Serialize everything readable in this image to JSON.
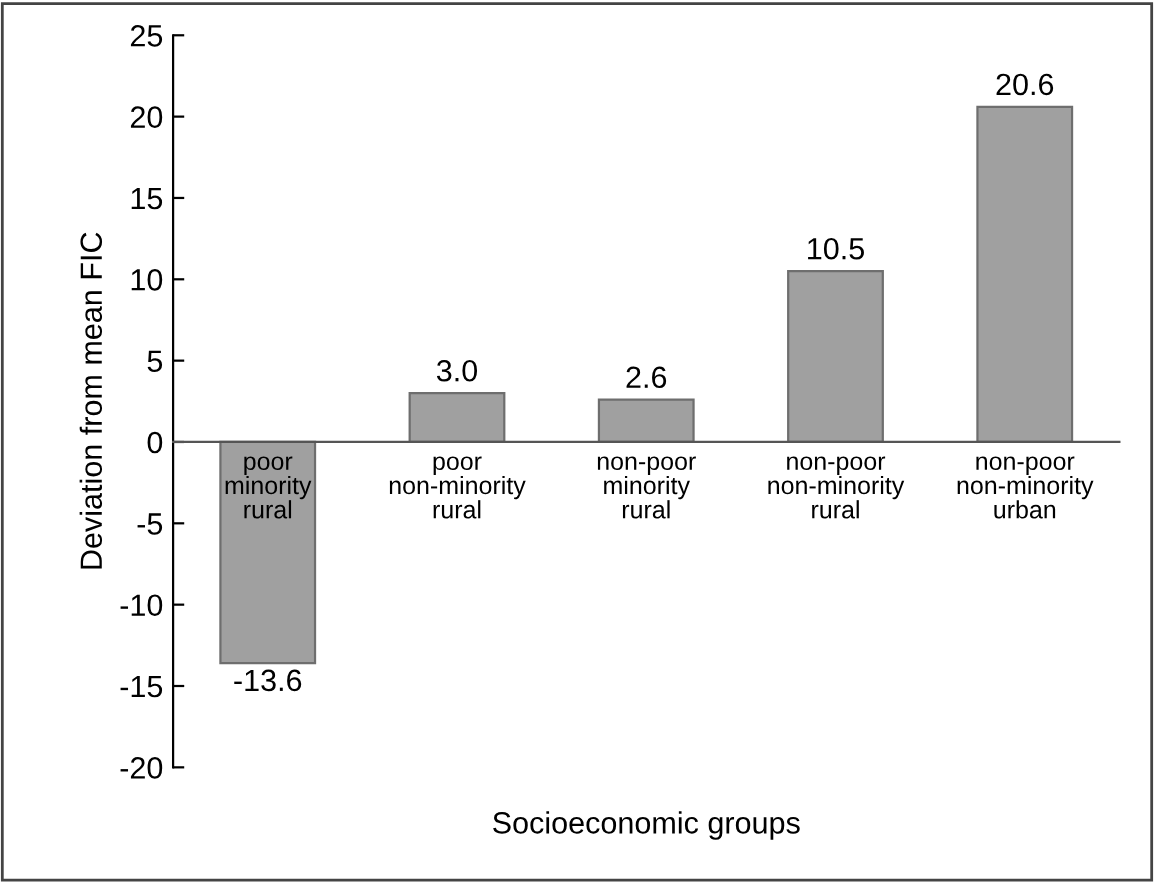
{
  "chart_data": {
    "type": "bar",
    "xlabel": "Socioeconomic groups",
    "ylabel": "Deviation from mean FIC",
    "categories": [
      "poor\nminority\nrural",
      "poor\nnon-minority\nrural",
      "non-poor\nminority\nrural",
      "non-poor\nnon-minority\nrural",
      "non-poor\nnon-minority\nurban"
    ],
    "values": [
      -13.6,
      3.0,
      2.6,
      10.5,
      20.6
    ],
    "value_labels": [
      "-13.6",
      "3.0",
      "2.6",
      "10.5",
      "20.6"
    ],
    "color": "#a0a0a0",
    "ylim": [
      -20,
      25
    ],
    "yticks": [
      {
        "value": -20,
        "label": "-20"
      },
      {
        "value": -15,
        "label": "-15"
      },
      {
        "value": -10,
        "label": "-10"
      },
      {
        "value": -5,
        "label": "-5"
      },
      0,
      5,
      10,
      15,
      20,
      25
    ],
    "grid": false,
    "legend": false
  }
}
